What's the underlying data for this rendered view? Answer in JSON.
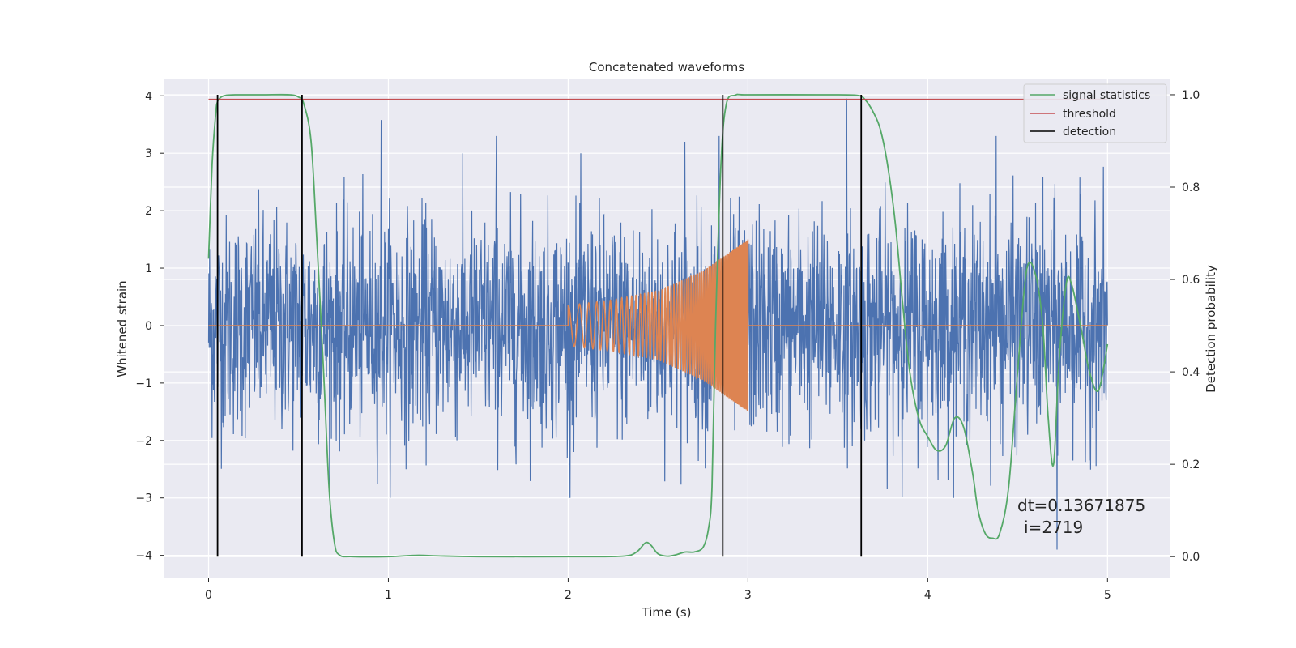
{
  "chart_data": {
    "type": "line",
    "title": "Concatenated waveforms",
    "xlabel": "Time (s)",
    "ylabel": "Whitened strain",
    "y2label": "Detection probability",
    "xlim": [
      -0.25,
      5.35
    ],
    "ylim": [
      -4.4,
      4.3
    ],
    "y2lim": [
      -0.047,
      1.035
    ],
    "x_ticks": [
      0,
      1,
      2,
      3,
      4,
      5
    ],
    "y_ticks": [
      4,
      3,
      2,
      1,
      0,
      -1,
      -2,
      -3,
      -4
    ],
    "y2_ticks": [
      1.0,
      0.8,
      0.6,
      0.4,
      0.2,
      0.0
    ],
    "x_tick_labels": [
      "0",
      "1",
      "2",
      "3",
      "4",
      "5"
    ],
    "y_tick_labels": [
      "4",
      "3",
      "2",
      "1",
      "0",
      "−1",
      "−2",
      "−3",
      "−4"
    ],
    "y2_tick_labels": [
      "1.0",
      "0.8",
      "0.6",
      "0.4",
      "0.2",
      "0.0"
    ],
    "grid": true,
    "legend_position": "top-right",
    "colors": {
      "background": "#eaeaf2",
      "grid": "#ffffff",
      "strain": "#4c72b0",
      "injection": "#dd8452",
      "statistics": "#55a868",
      "threshold": "#c44e52",
      "detection": "#000000"
    },
    "series": [
      {
        "name": "",
        "axis": "left",
        "color": "#4c72b0",
        "description_values": "whitened strain noise, roughly Gaussian, visible range about -3.6 to 4",
        "x_range": [
          0,
          5
        ],
        "peak_points": [
          [
            0.96,
            3.58
          ],
          [
            1.6,
            3.3
          ],
          [
            2.65,
            3.2
          ],
          [
            2.84,
            3.3
          ],
          [
            3.55,
            3.95
          ],
          [
            4.38,
            3.3
          ],
          [
            4.72,
            -3.9
          ]
        ]
      },
      {
        "name": "",
        "axis": "left",
        "color": "#dd8452",
        "description_values": "injected chirp signal between t=2.0 s and t=3.0 s, amplitude grows from about 0.35 to 1.5",
        "x": [
          0,
          2.0,
          2.25,
          2.5,
          2.75,
          3.0,
          5.0
        ],
        "envelope": [
          0,
          0.35,
          0.45,
          0.6,
          0.95,
          1.5,
          0
        ]
      },
      {
        "name": "signal statistics",
        "axis": "right",
        "color": "#55a868",
        "x": [
          0,
          0.02,
          0.04,
          0.05,
          0.07,
          0.1,
          0.15,
          0.3,
          0.45,
          0.5,
          0.53,
          0.57,
          0.6,
          0.64,
          0.67,
          0.7,
          0.73,
          0.8,
          1.0,
          1.1,
          1.17,
          1.25,
          1.5,
          2.0,
          2.3,
          2.38,
          2.43,
          2.46,
          2.5,
          2.55,
          2.6,
          2.65,
          2.7,
          2.75,
          2.78,
          2.8,
          2.82,
          2.85,
          2.88,
          2.93,
          3.0,
          3.4,
          3.6,
          3.65,
          3.7,
          3.74,
          3.78,
          3.82,
          3.86,
          3.9,
          3.95,
          4.0,
          4.05,
          4.1,
          4.15,
          4.2,
          4.25,
          4.28,
          4.32,
          4.36,
          4.4,
          4.45,
          4.5,
          4.55,
          4.6,
          4.64,
          4.67,
          4.7,
          4.73,
          4.77,
          4.8,
          4.85,
          4.9,
          4.95,
          5.0
        ],
        "y": [
          0.645,
          0.85,
          0.96,
          0.985,
          0.995,
          0.999,
          1.0,
          1.0,
          1.0,
          0.995,
          0.98,
          0.9,
          0.7,
          0.4,
          0.15,
          0.03,
          0.003,
          0.0,
          0.0,
          0.002,
          0.003,
          0.002,
          0.0,
          0.0,
          0.001,
          0.01,
          0.03,
          0.025,
          0.006,
          0.001,
          0.004,
          0.01,
          0.01,
          0.02,
          0.06,
          0.15,
          0.5,
          0.85,
          0.98,
          0.999,
          1.0,
          1.0,
          0.999,
          0.99,
          0.96,
          0.92,
          0.84,
          0.72,
          0.55,
          0.4,
          0.3,
          0.26,
          0.23,
          0.24,
          0.3,
          0.28,
          0.18,
          0.1,
          0.05,
          0.04,
          0.05,
          0.15,
          0.4,
          0.62,
          0.61,
          0.5,
          0.3,
          0.2,
          0.42,
          0.59,
          0.59,
          0.5,
          0.4,
          0.36,
          0.46
        ]
      },
      {
        "name": "threshold",
        "axis": "right",
        "color": "#c44e52",
        "x": [
          0,
          5
        ],
        "y": [
          0.99,
          0.99
        ]
      },
      {
        "name": "detection",
        "axis": "right",
        "color": "#000000",
        "vertical_lines_x": [
          0.05,
          0.52,
          2.86,
          3.63
        ]
      }
    ],
    "legend": [
      "signal statistics",
      "threshold",
      "detection"
    ],
    "annotations": [
      "dt=0.13671875",
      "i=2719"
    ]
  }
}
